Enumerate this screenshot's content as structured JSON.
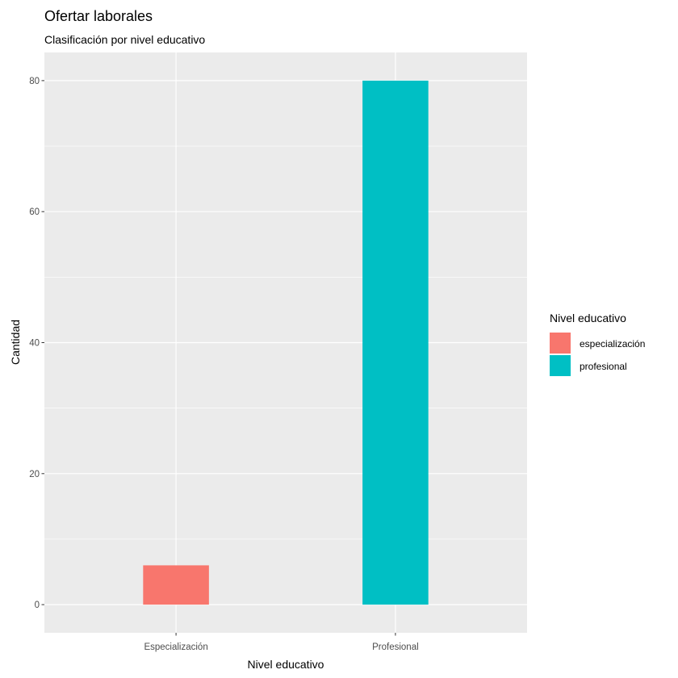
{
  "chart_data": {
    "type": "bar",
    "title": "Ofertar laborales",
    "subtitle": "Clasificación por nivel educativo",
    "xlabel": "Nivel educativo",
    "ylabel": "Cantidad",
    "categories": [
      "Especialización",
      "Profesional"
    ],
    "values": [
      6,
      80
    ],
    "colors": [
      "#F8766D",
      "#00BFC4"
    ],
    "ylim": [
      -4.3,
      84.3
    ],
    "yticks": [
      0,
      20,
      40,
      60,
      80
    ],
    "grid": true,
    "panel_background": "#EBEBEB",
    "grid_color": "#FFFFFF",
    "legend": {
      "title": "Nivel educativo",
      "position": "right",
      "entries": [
        {
          "label": "especialización",
          "color": "#F8766D"
        },
        {
          "label": "profesional",
          "color": "#00BFC4"
        }
      ]
    }
  }
}
